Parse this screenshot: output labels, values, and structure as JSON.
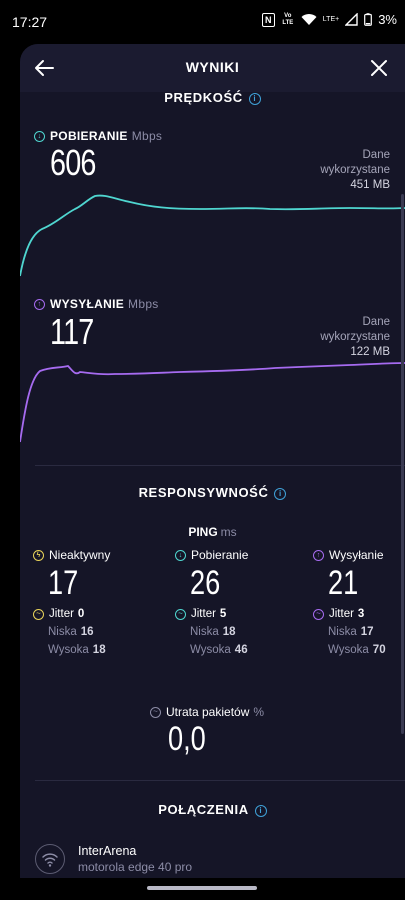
{
  "status_bar": {
    "time": "17:27",
    "nfc_label": "N",
    "volte_label": "Vo LTE",
    "lte_label": "LTE+",
    "battery": "3%"
  },
  "header": {
    "title": "WYNIKI"
  },
  "speed": {
    "title": "PRĘDKOŚĆ",
    "download": {
      "label": "POBIERANIE",
      "unit": "Mbps",
      "value": "606",
      "data_used_label_1": "Dane",
      "data_used_label_2": "wykorzystane",
      "data_used_amount": "451 MB",
      "color": "#4fd6d0"
    },
    "upload": {
      "label": "WYSYŁANIE",
      "unit": "Mbps",
      "value": "117",
      "data_used_label_1": "Dane",
      "data_used_label_2": "wykorzystane",
      "data_used_amount": "122 MB",
      "color": "#a66bf0"
    }
  },
  "responsiveness": {
    "title": "RESPONSYWNOŚĆ",
    "ping_label": "PING",
    "ping_unit": "ms",
    "idle": {
      "label": "Nieaktywny",
      "value": "17",
      "jitter_label": "Jitter",
      "jitter": "0",
      "low_label": "Niska",
      "low": "16",
      "high_label": "Wysoka",
      "high": "18",
      "color": "#e8d35a"
    },
    "download": {
      "label": "Pobieranie",
      "value": "26",
      "jitter_label": "Jitter",
      "jitter": "5",
      "low_label": "Niska",
      "low": "18",
      "high_label": "Wysoka",
      "high": "46",
      "color": "#4fd6d0"
    },
    "upload": {
      "label": "Wysyłanie",
      "value": "21",
      "jitter_label": "Jitter",
      "jitter": "3",
      "low_label": "Niska",
      "low": "17",
      "high_label": "Wysoka",
      "high": "70",
      "color": "#a66bf0"
    },
    "packet_loss_label": "Utrata pakietów",
    "packet_loss_unit": "%",
    "packet_loss_value": "0,0"
  },
  "connections": {
    "title": "POŁĄCZENIA",
    "network_name": "InterArena",
    "device": "motorola edge 40 pro"
  }
}
